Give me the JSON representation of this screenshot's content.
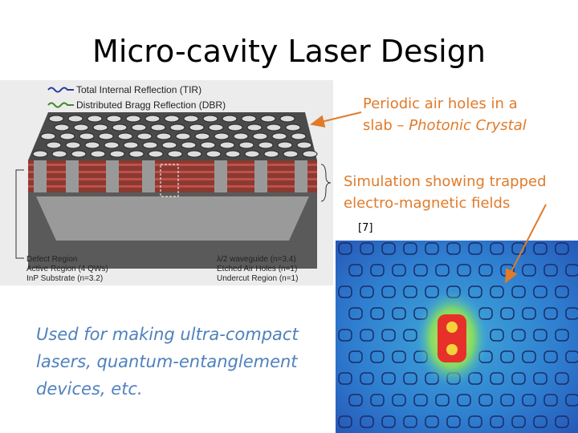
{
  "title": "Micro-cavity Laser Design",
  "figure_left": {
    "legend": [
      "Total Internal Reflection (TIR)",
      "Distributed Bragg Reflection (DBR)"
    ],
    "labels_left": [
      "Defect Region",
      "Active Region (4 QWs)",
      "InP Substrate (n=3.2)"
    ],
    "labels_right": [
      "λ/2 waveguide (n=3.4)",
      "Etched Air Holes (n=1)",
      "Undercut Region (n=1)"
    ]
  },
  "annotation_crystal": {
    "line1": "Periodic air holes in a",
    "line2": "slab –",
    "line2_italic": "Photonic Crystal"
  },
  "annotation_simulation": {
    "line1": "Simulation showing trapped",
    "line2": "electro-magnetic fields"
  },
  "reference": "[7]",
  "caption": [
    "Used for making ultra-compact",
    "lasers, quantum-entanglement",
    "devices, etc."
  ]
}
